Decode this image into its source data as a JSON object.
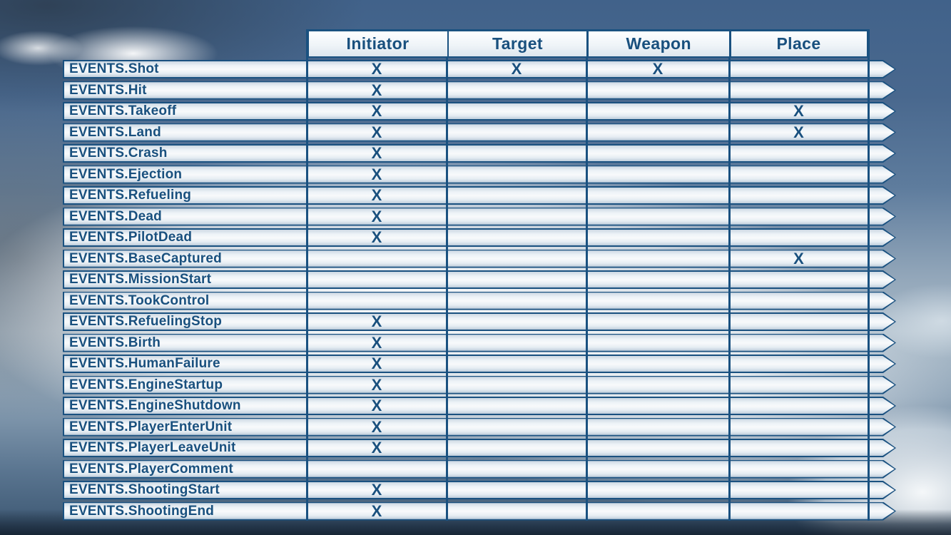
{
  "slide": {
    "background": "sky-with-clouds-photo"
  },
  "colors": {
    "accent_navy": "#1a5180",
    "bar_fill_light": "#f4f8fb"
  },
  "table": {
    "mark": "X",
    "columns": [
      "Initiator",
      "Target",
      "Weapon",
      "Place"
    ],
    "rows": [
      {
        "label": "EVENTS.Shot",
        "marks": [
          true,
          true,
          true,
          false
        ]
      },
      {
        "label": "EVENTS.Hit",
        "marks": [
          true,
          false,
          false,
          false
        ]
      },
      {
        "label": "EVENTS.Takeoff",
        "marks": [
          true,
          false,
          false,
          true
        ]
      },
      {
        "label": "EVENTS.Land",
        "marks": [
          true,
          false,
          false,
          true
        ]
      },
      {
        "label": "EVENTS.Crash",
        "marks": [
          true,
          false,
          false,
          false
        ]
      },
      {
        "label": "EVENTS.Ejection",
        "marks": [
          true,
          false,
          false,
          false
        ]
      },
      {
        "label": "EVENTS.Refueling",
        "marks": [
          true,
          false,
          false,
          false
        ]
      },
      {
        "label": "EVENTS.Dead",
        "marks": [
          true,
          false,
          false,
          false
        ]
      },
      {
        "label": "EVENTS.PilotDead",
        "marks": [
          true,
          false,
          false,
          false
        ]
      },
      {
        "label": "EVENTS.BaseCaptured",
        "marks": [
          false,
          false,
          false,
          true
        ]
      },
      {
        "label": "EVENTS.MissionStart",
        "marks": [
          false,
          false,
          false,
          false
        ]
      },
      {
        "label": "EVENTS.TookControl",
        "marks": [
          false,
          false,
          false,
          false
        ]
      },
      {
        "label": "EVENTS.RefuelingStop",
        "marks": [
          true,
          false,
          false,
          false
        ]
      },
      {
        "label": "EVENTS.Birth",
        "marks": [
          true,
          false,
          false,
          false
        ]
      },
      {
        "label": "EVENTS.HumanFailure",
        "marks": [
          true,
          false,
          false,
          false
        ]
      },
      {
        "label": "EVENTS.EngineStartup",
        "marks": [
          true,
          false,
          false,
          false
        ]
      },
      {
        "label": "EVENTS.EngineShutdown",
        "marks": [
          true,
          false,
          false,
          false
        ]
      },
      {
        "label": "EVENTS.PlayerEnterUnit",
        "marks": [
          true,
          false,
          false,
          false
        ]
      },
      {
        "label": "EVENTS.PlayerLeaveUnit",
        "marks": [
          true,
          false,
          false,
          false
        ]
      },
      {
        "label": "EVENTS.PlayerComment",
        "marks": [
          false,
          false,
          false,
          false
        ]
      },
      {
        "label": "EVENTS.ShootingStart",
        "marks": [
          true,
          false,
          false,
          false
        ]
      },
      {
        "label": "EVENTS.ShootingEnd",
        "marks": [
          true,
          false,
          false,
          false
        ]
      }
    ]
  }
}
